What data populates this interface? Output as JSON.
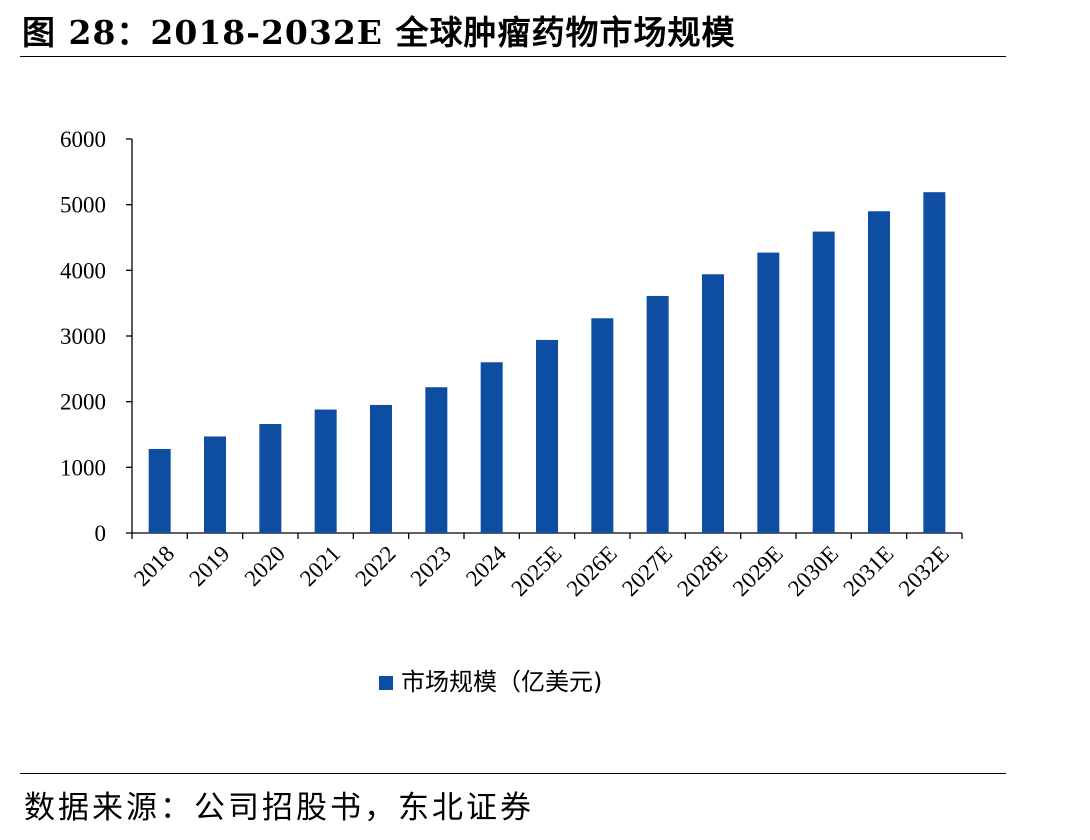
{
  "figure": {
    "title": "图 28：2018-2032E 全球肿瘤药物市场规模",
    "source": "数据来源：公司招股书，东北证券"
  },
  "colors": {
    "bar": "#0e4ea2",
    "axis": "#000000"
  },
  "chart_data": {
    "type": "bar",
    "categories": [
      "2018",
      "2019",
      "2020",
      "2021",
      "2022",
      "2023",
      "2024",
      "2025E",
      "2026E",
      "2027E",
      "2028E",
      "2029E",
      "2030E",
      "2031E",
      "2032E"
    ],
    "series": [
      {
        "name": "市场规模（亿美元)",
        "values": [
          1280,
          1470,
          1660,
          1880,
          1950,
          2220,
          2600,
          2940,
          3270,
          3610,
          3940,
          4270,
          4590,
          4900,
          5190
        ]
      }
    ],
    "yticks": [
      "0",
      "1000",
      "2000",
      "3000",
      "4000",
      "5000",
      "6000"
    ],
    "ylim": [
      0,
      6000
    ],
    "grid": false,
    "legend": "bottom-center",
    "title": "",
    "xlabel": "",
    "ylabel": ""
  }
}
